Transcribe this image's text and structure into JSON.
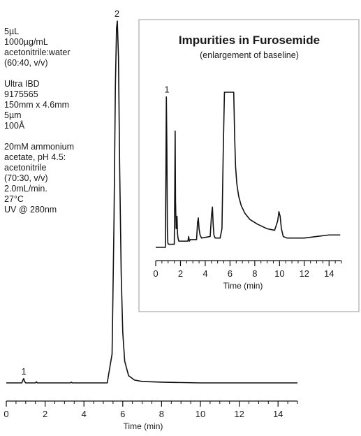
{
  "conditions": {
    "sample": [
      "5µL",
      "1000µg/mL",
      "acetonitrile:water",
      "(60:40, v/v)"
    ],
    "column": [
      "Ultra IBD",
      "9175565",
      "150mm x 4.6mm",
      "5µm",
      "100Å"
    ],
    "method": [
      "20mM ammonium",
      "acetate, pH 4.5:",
      "acetonitrile",
      "(70:30, v/v)",
      "2.0mL/min.",
      "27°C",
      "UV @ 280nm"
    ]
  },
  "chart_data": [
    {
      "type": "line",
      "title": "",
      "xlabel": "Time (min)",
      "ylabel": "",
      "xlim": [
        0,
        15
      ],
      "ylim": [
        0,
        1
      ],
      "xticks": [
        0,
        2,
        4,
        6,
        8,
        10,
        12,
        14
      ],
      "peak_labels": [
        {
          "label": "1",
          "x": 0.9,
          "y": 0.012
        },
        {
          "label": "2",
          "x": 5.7,
          "y": 1.0
        }
      ],
      "series": [
        {
          "x": [
            0.0,
            0.8,
            0.86,
            0.9,
            0.94,
            1.0,
            1.5,
            1.55,
            1.6,
            3.3,
            3.35,
            3.4,
            5.2,
            5.45,
            5.55,
            5.62,
            5.68,
            5.72,
            5.78,
            5.84,
            5.92,
            6.0,
            6.1,
            6.3,
            6.6,
            7.0,
            8.0,
            10.0,
            12.0,
            15.0
          ],
          "y": [
            0.0,
            0.0,
            0.008,
            0.012,
            0.004,
            0.0,
            0.0,
            0.003,
            0.0,
            0.0,
            0.002,
            0.0,
            0.0,
            0.08,
            0.45,
            0.82,
            0.98,
            1.0,
            0.9,
            0.6,
            0.3,
            0.14,
            0.06,
            0.02,
            0.008,
            0.004,
            0.002,
            0.0,
            0.0,
            0.0
          ]
        }
      ]
    },
    {
      "type": "line",
      "title": "Impurities in Furosemide",
      "subtitle": "(enlargement of baseline)",
      "xlabel": "Time (min)",
      "ylabel": "",
      "xlim": [
        0,
        15
      ],
      "ylim": [
        0,
        1
      ],
      "xticks": [
        0,
        2,
        4,
        6,
        8,
        10,
        12,
        14
      ],
      "peak_labels": [
        {
          "label": "1",
          "x": 0.9,
          "y": 0.97
        }
      ],
      "series": [
        {
          "x": [
            0.0,
            0.78,
            0.82,
            0.86,
            0.9,
            0.94,
            0.98,
            1.02,
            1.5,
            1.54,
            1.57,
            1.6,
            1.65,
            1.72,
            1.76,
            1.8,
            1.86,
            2.6,
            2.66,
            2.72,
            2.8,
            3.3,
            3.38,
            3.44,
            3.5,
            3.58,
            3.7,
            4.4,
            4.5,
            4.58,
            4.64,
            4.7,
            4.8,
            5.2,
            5.35,
            5.45,
            5.55,
            6.3,
            6.38,
            6.45,
            6.55,
            6.7,
            6.9,
            7.2,
            7.6,
            8.2,
            9.0,
            9.6,
            9.85,
            9.95,
            10.05,
            10.15,
            10.3,
            10.6,
            11.0,
            12.0,
            13.0,
            14.0,
            14.9
          ],
          "y": [
            0.0,
            0.0,
            0.45,
            0.97,
            0.65,
            0.12,
            0.03,
            0.02,
            0.02,
            0.38,
            0.75,
            0.3,
            0.12,
            0.2,
            0.09,
            0.06,
            0.04,
            0.04,
            0.07,
            0.04,
            0.05,
            0.05,
            0.16,
            0.19,
            0.12,
            0.08,
            0.06,
            0.07,
            0.2,
            0.26,
            0.15,
            0.08,
            0.06,
            0.06,
            0.12,
            0.6,
            1.0,
            1.0,
            0.7,
            0.52,
            0.41,
            0.33,
            0.27,
            0.22,
            0.18,
            0.15,
            0.12,
            0.11,
            0.17,
            0.23,
            0.2,
            0.12,
            0.07,
            0.06,
            0.06,
            0.06,
            0.07,
            0.08,
            0.08
          ]
        }
      ]
    }
  ]
}
